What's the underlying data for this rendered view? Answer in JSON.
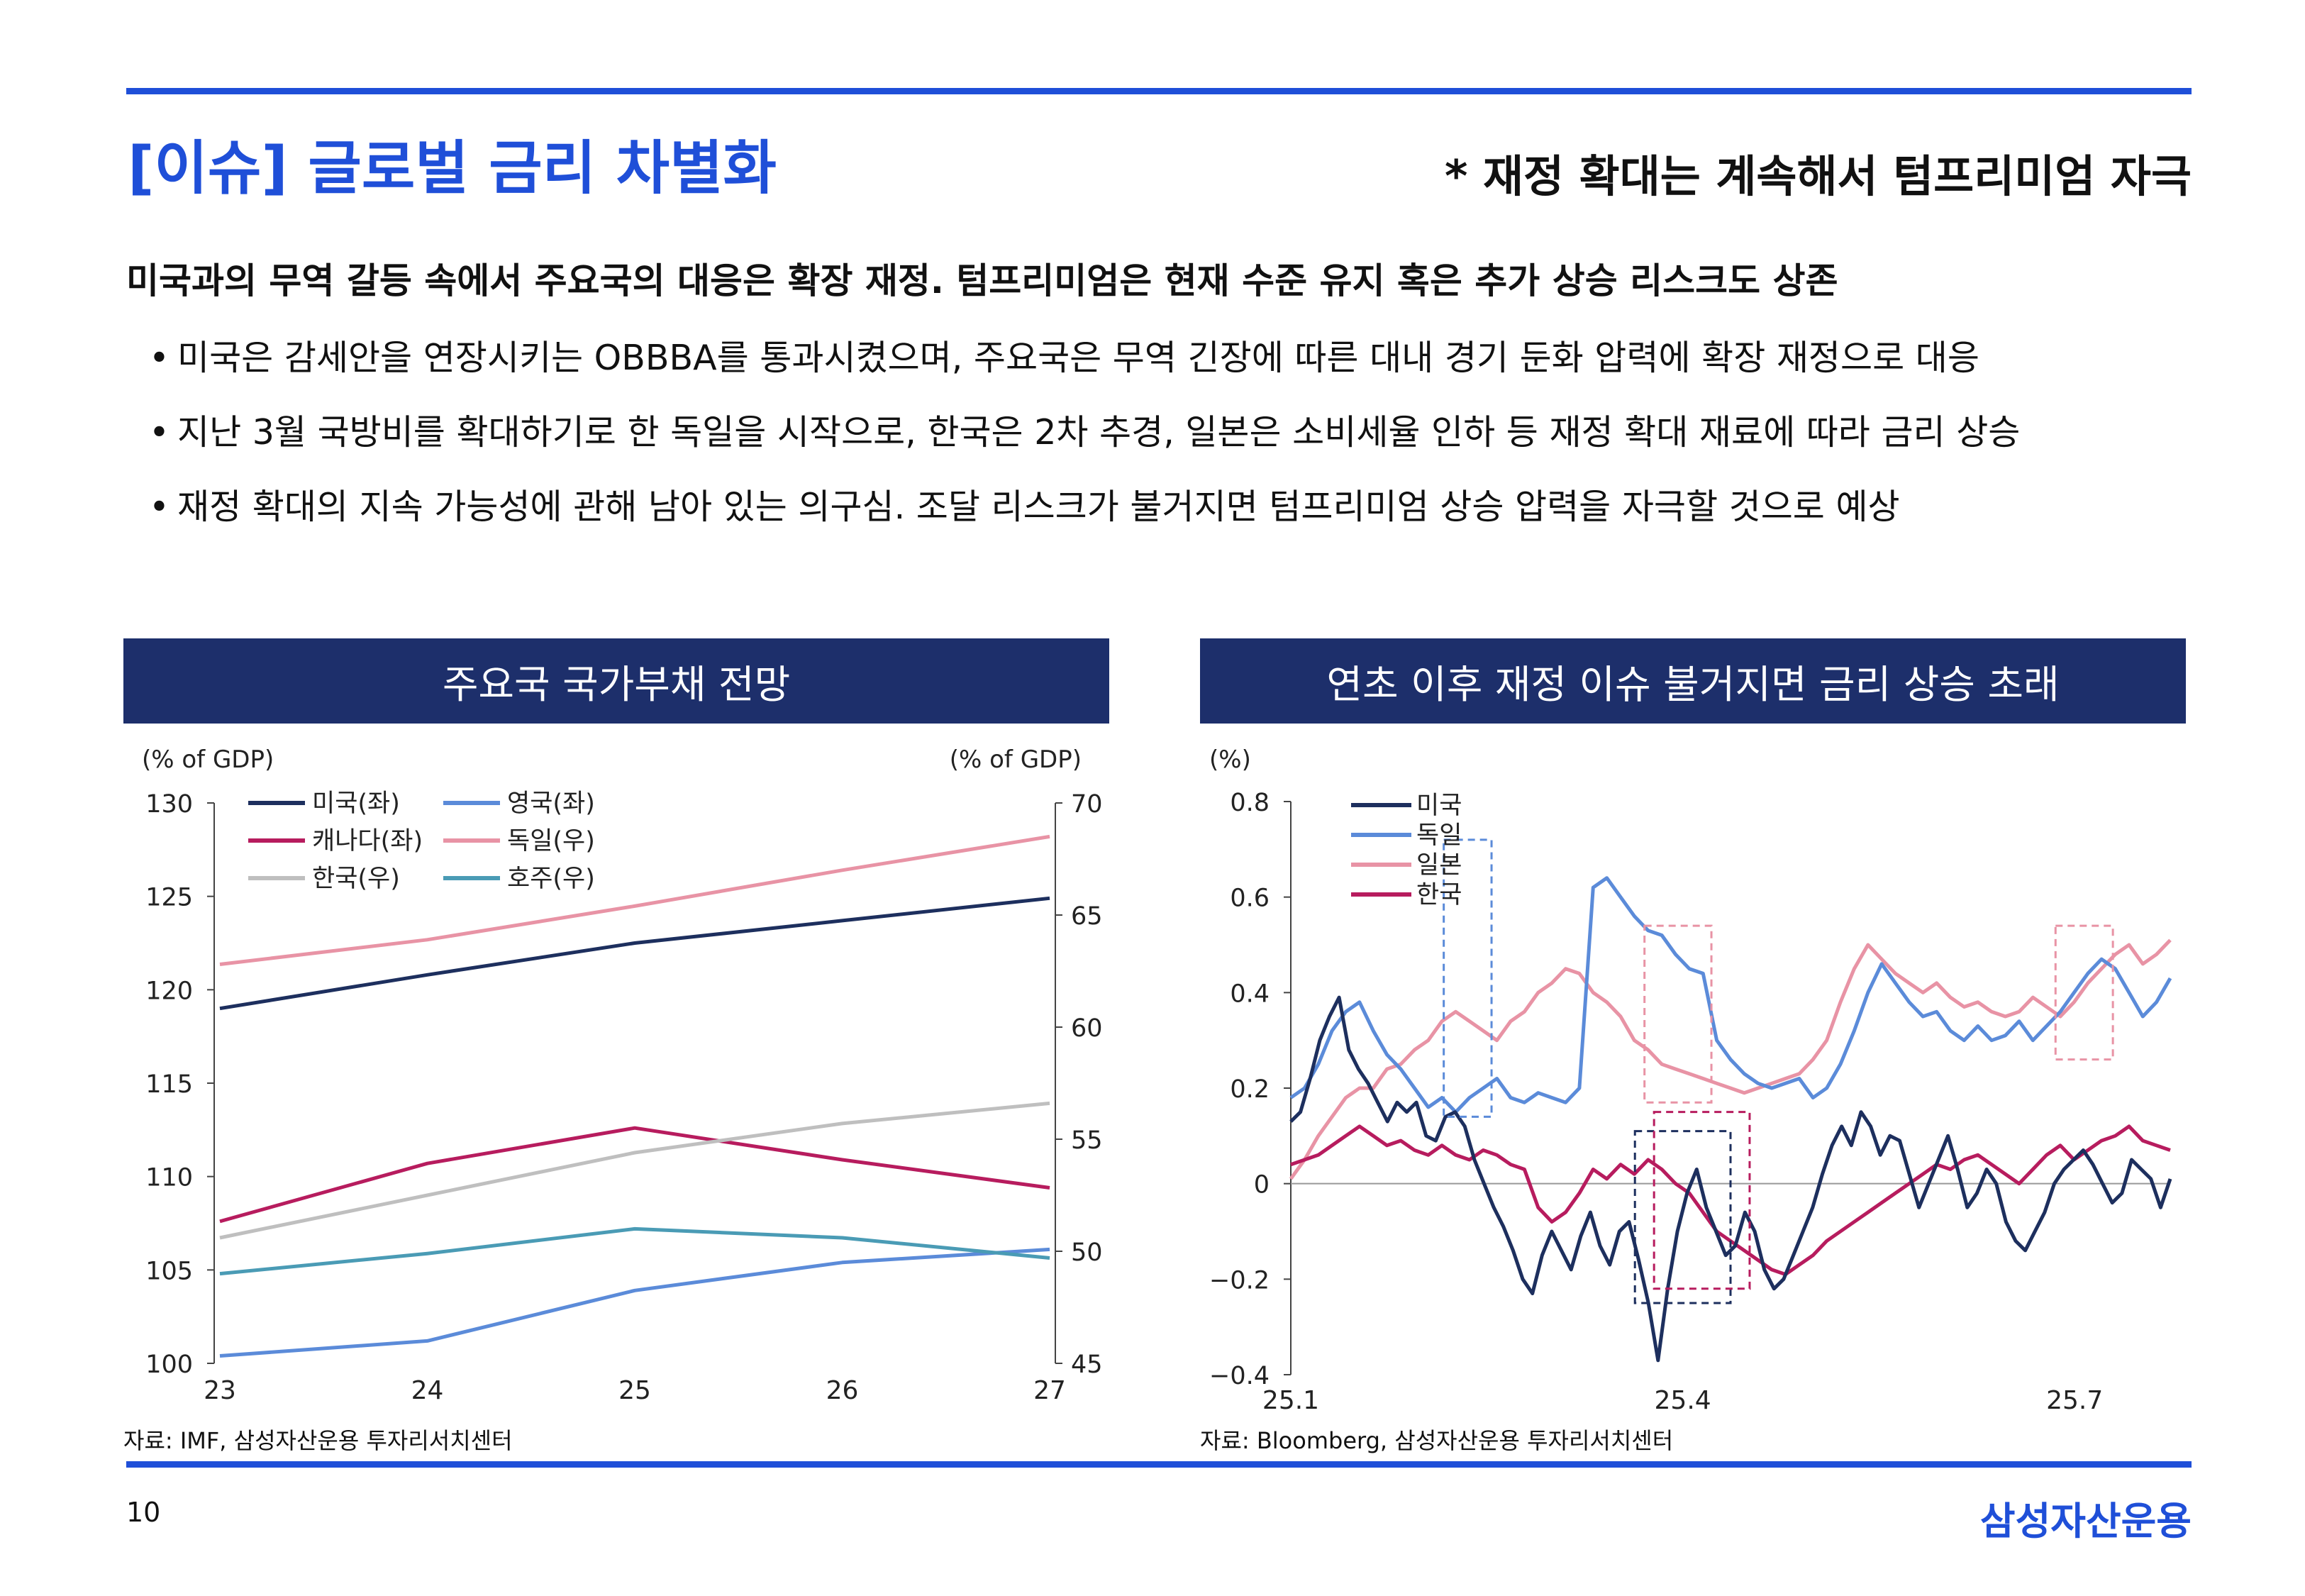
{
  "header": {
    "title": "[이슈] 글로벌 금리 차별화",
    "subtitle": "* 재정 확대는 계속해서 텀프리미엄 자극"
  },
  "headline": "미국과의 무역 갈등 속에서 주요국의 대응은 확장 재정. 텀프리미엄은 현재 수준 유지 혹은 추가 상승 리스크도 상존",
  "bullets": [
    "미국은 감세안을 연장시키는 OBBBA를 통과시켰으며, 주요국은 무역 긴장에 따른 대내 경기 둔화 압력에 확장 재정으로 대응",
    "지난 3월 국방비를 확대하기로 한 독일을 시작으로, 한국은 2차 추경, 일본은 소비세율 인하 등 재정 확대 재료에 따라 금리 상승",
    "재정 확대의 지속 가능성에 관해 남아 있는 의구심. 조달 리스크가 불거지면 텀프리미엄 상승 압력을 자극할 것으로 예상"
  ],
  "bullet_marker": "•",
  "left_panel": {
    "header": "주요국 국가부채 전망",
    "source": "자료: IMF, 삼성자산운용 투자리서치센터"
  },
  "right_panel": {
    "header": "연초 이후 재정 이슈 불거지면 금리 상승 초래",
    "source": "자료: Bloomberg, 삼성자산운용 투자리서치센터"
  },
  "footer": {
    "page": "10",
    "brand": "삼성자산운용"
  },
  "chart_data": [
    {
      "type": "line",
      "title": "주요국 국가부채 전망",
      "x": [
        "23",
        "24",
        "25",
        "26",
        "27"
      ],
      "yleft_label": "(% of GDP)",
      "yright_label": "(% of GDP)",
      "yleft_lim": [
        100,
        130
      ],
      "yleft_ticks": [
        100,
        105,
        110,
        115,
        120,
        125,
        130
      ],
      "yright_lim": [
        45,
        70
      ],
      "yright_ticks": [
        45,
        50,
        55,
        60,
        65,
        70
      ],
      "legend_position": "top-left",
      "series": [
        {
          "name": "미국(좌)",
          "axis": "left",
          "color": "#1d2f5e",
          "values": [
            119.0,
            120.8,
            122.5,
            123.7,
            124.9
          ]
        },
        {
          "name": "영국(좌)",
          "axis": "left",
          "color": "#5b8bd9",
          "values": [
            100.4,
            101.2,
            103.9,
            105.4,
            106.1
          ]
        },
        {
          "name": "캐나다(좌)",
          "axis": "left",
          "color": "#b71c5e",
          "values": [
            107.6,
            110.7,
            112.6,
            110.9,
            109.4
          ]
        },
        {
          "name": "독일(우)",
          "axis": "right",
          "color": "#e893a5",
          "values": [
            62.8,
            63.9,
            65.4,
            67.0,
            68.5
          ]
        },
        {
          "name": "한국(우)",
          "axis": "right",
          "color": "#bfbfbf",
          "values": [
            50.6,
            52.5,
            54.4,
            55.7,
            56.6
          ]
        },
        {
          "name": "호주(우)",
          "axis": "right",
          "color": "#4a9bb5",
          "values": [
            49.0,
            49.9,
            51.0,
            50.6,
            49.7
          ]
        }
      ]
    },
    {
      "type": "line",
      "title": "연초 이후 재정 이슈 불거지면 금리 상승 초래",
      "x_label_note": "daily, 2025-01 to 2025-08",
      "ylabel": "(%)",
      "ylim": [
        -0.4,
        0.8
      ],
      "yticks": [
        "0.8",
        "0.6",
        "0.4",
        "0.2",
        "0",
        "−0.2",
        "−0.4"
      ],
      "xticks": [
        "25.1",
        "25.4",
        "25.7"
      ],
      "legend_position": "top-left",
      "series": [
        {
          "name": "미국",
          "color": "#1d2f5e",
          "values": [
            0.13,
            0.15,
            0.22,
            0.3,
            0.35,
            0.39,
            0.28,
            0.24,
            0.21,
            0.17,
            0.13,
            0.17,
            0.15,
            0.17,
            0.1,
            0.09,
            0.14,
            0.15,
            0.12,
            0.05,
            0.0,
            -0.05,
            -0.09,
            -0.14,
            -0.2,
            -0.23,
            -0.15,
            -0.1,
            -0.14,
            -0.18,
            -0.11,
            -0.06,
            -0.13,
            -0.17,
            -0.1,
            -0.08,
            -0.16,
            -0.25,
            -0.37,
            -0.22,
            -0.1,
            -0.02,
            0.03,
            -0.05,
            -0.1,
            -0.15,
            -0.13,
            -0.06,
            -0.1,
            -0.18,
            -0.22,
            -0.2,
            -0.15,
            -0.1,
            -0.05,
            0.02,
            0.08,
            0.12,
            0.08,
            0.15,
            0.12,
            0.06,
            0.1,
            0.09,
            0.02,
            -0.05,
            0.0,
            0.05,
            0.1,
            0.03,
            -0.05,
            -0.02,
            0.03,
            0.0,
            -0.08,
            -0.12,
            -0.14,
            -0.1,
            -0.06,
            0.0,
            0.03,
            0.05,
            0.07,
            0.04,
            0.0,
            -0.04,
            -0.02,
            0.05,
            0.03,
            0.01,
            -0.05,
            0.01
          ]
        },
        {
          "name": "독일",
          "color": "#5b8bd9",
          "values": [
            0.18,
            0.2,
            0.25,
            0.32,
            0.36,
            0.38,
            0.32,
            0.27,
            0.24,
            0.2,
            0.16,
            0.18,
            0.15,
            0.18,
            0.2,
            0.22,
            0.18,
            0.17,
            0.19,
            0.18,
            0.17,
            0.2,
            0.62,
            0.64,
            0.6,
            0.56,
            0.53,
            0.52,
            0.48,
            0.45,
            0.44,
            0.3,
            0.26,
            0.23,
            0.21,
            0.2,
            0.21,
            0.22,
            0.18,
            0.2,
            0.25,
            0.32,
            0.4,
            0.46,
            0.42,
            0.38,
            0.35,
            0.36,
            0.32,
            0.3,
            0.33,
            0.3,
            0.31,
            0.34,
            0.3,
            0.33,
            0.36,
            0.4,
            0.44,
            0.47,
            0.45,
            0.4,
            0.35,
            0.38,
            0.43
          ]
        },
        {
          "name": "일본",
          "color": "#e893a5",
          "values": [
            0.01,
            0.05,
            0.1,
            0.14,
            0.18,
            0.2,
            0.2,
            0.24,
            0.25,
            0.28,
            0.3,
            0.34,
            0.36,
            0.34,
            0.32,
            0.3,
            0.34,
            0.36,
            0.4,
            0.42,
            0.45,
            0.44,
            0.4,
            0.38,
            0.35,
            0.3,
            0.28,
            0.25,
            0.24,
            0.23,
            0.22,
            0.21,
            0.2,
            0.19,
            0.2,
            0.21,
            0.22,
            0.23,
            0.26,
            0.3,
            0.38,
            0.45,
            0.5,
            0.47,
            0.44,
            0.42,
            0.4,
            0.42,
            0.39,
            0.37,
            0.38,
            0.36,
            0.35,
            0.36,
            0.39,
            0.37,
            0.35,
            0.38,
            0.42,
            0.45,
            0.48,
            0.5,
            0.46,
            0.48,
            0.51
          ]
        },
        {
          "name": "한국",
          "color": "#b71c5e",
          "values": [
            0.04,
            0.05,
            0.06,
            0.08,
            0.1,
            0.12,
            0.1,
            0.08,
            0.09,
            0.07,
            0.06,
            0.08,
            0.06,
            0.05,
            0.07,
            0.06,
            0.04,
            0.03,
            -0.05,
            -0.08,
            -0.06,
            -0.02,
            0.03,
            0.01,
            0.04,
            0.02,
            0.05,
            0.03,
            0.0,
            -0.02,
            -0.06,
            -0.1,
            -0.12,
            -0.14,
            -0.16,
            -0.18,
            -0.19,
            -0.17,
            -0.15,
            -0.12,
            -0.1,
            -0.08,
            -0.06,
            -0.04,
            -0.02,
            0.0,
            0.02,
            0.04,
            0.03,
            0.05,
            0.06,
            0.04,
            0.02,
            0.0,
            0.03,
            0.06,
            0.08,
            0.05,
            0.07,
            0.09,
            0.1,
            0.12,
            0.09,
            0.08,
            0.07
          ]
        }
      ]
    }
  ]
}
